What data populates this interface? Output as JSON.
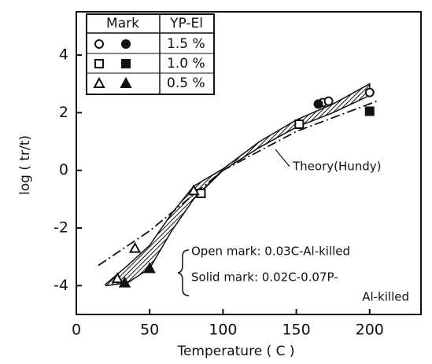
{
  "chart_data": {
    "type": "scatter",
    "xlabel": "Temperature ( C )",
    "ylabel": "log ( tr/t)",
    "xlim": [
      0,
      235
    ],
    "ylim": [
      -5,
      5.5
    ],
    "xticks": [
      0,
      50,
      100,
      150,
      200
    ],
    "yticks": [
      -4,
      -2,
      0,
      2,
      4
    ],
    "legend": {
      "headers": [
        "Mark",
        "YP-El"
      ]
    },
    "series": [
      {
        "name": "1.5 %",
        "marker": "circle",
        "color": "#111",
        "open_x": [
          168,
          172,
          200
        ],
        "open_values": [
          2.35,
          2.4,
          2.7
        ],
        "solid_x": [
          165
        ],
        "solid_values": [
          2.3
        ]
      },
      {
        "name": "1.0 %",
        "marker": "square",
        "color": "#111",
        "open_x": [
          85,
          152
        ],
        "open_values": [
          -0.8,
          1.6
        ],
        "solid_x": [
          200
        ],
        "solid_values": [
          2.05
        ]
      },
      {
        "name": "0.5 %",
        "marker": "triangle",
        "color": "#111",
        "open_x": [
          28,
          40,
          80
        ],
        "open_values": [
          -3.75,
          -2.7,
          -0.7
        ],
        "solid_x": [
          33,
          50
        ],
        "solid_values": [
          -3.9,
          -3.4
        ]
      }
    ],
    "lines": [
      {
        "name": "Theory(Hundy)",
        "style": "dashdot",
        "x": [
          15,
          50,
          100,
          150,
          205
        ],
        "values": [
          -3.3,
          -2.1,
          0,
          1.35,
          2.4
        ]
      }
    ],
    "band": {
      "x": [
        20,
        35,
        50,
        65,
        80,
        100,
        125,
        150,
        175,
        200
      ],
      "lower": [
        -4,
        -3.9,
        -3.4,
        -2.1,
        -1.0,
        0,
        0.8,
        1.5,
        2.0,
        2.6
      ],
      "upper": [
        -3.95,
        -3.3,
        -2.6,
        -1.5,
        -0.55,
        0.05,
        1.0,
        1.75,
        2.3,
        3.0
      ]
    },
    "annotations": [
      "Open mark: 0.03C-Al-killed",
      "Solid mark: 0.02C-0.07P-",
      "Al-killed"
    ]
  }
}
